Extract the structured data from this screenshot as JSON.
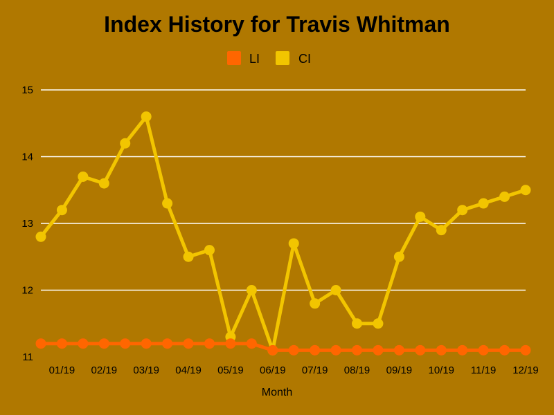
{
  "chart_data": {
    "type": "line",
    "title": "Index History for Travis Whitman",
    "xlabel": "Month",
    "ylabel": "",
    "ylim": [
      11,
      15
    ],
    "yticks": [
      "11",
      "12",
      "13",
      "14",
      "15"
    ],
    "grid": true,
    "legend_position": "top-center",
    "x_tick_labels": [
      "01/19",
      "02/19",
      "03/19",
      "04/19",
      "05/19",
      "06/19",
      "07/19",
      "08/19",
      "09/19",
      "10/19",
      "11/19",
      "12/19"
    ],
    "series": [
      {
        "name": "LI",
        "color": "#ff6600",
        "values": [
          11.2,
          11.2,
          11.2,
          11.2,
          11.2,
          11.2,
          11.2,
          11.2,
          11.2,
          11.2,
          11.2,
          11.1,
          11.1,
          11.1,
          11.1,
          11.1,
          11.1,
          11.1,
          11.1,
          11.1,
          11.1,
          11.1,
          11.1,
          11.1
        ]
      },
      {
        "name": "CI",
        "color": "#f2c500",
        "values": [
          12.8,
          13.2,
          13.7,
          13.6,
          14.2,
          14.6,
          13.3,
          12.5,
          12.6,
          11.3,
          12.0,
          11.1,
          12.7,
          11.8,
          12.0,
          11.5,
          11.5,
          12.5,
          13.1,
          12.9,
          13.2,
          13.3,
          13.4,
          13.5
        ]
      }
    ]
  }
}
